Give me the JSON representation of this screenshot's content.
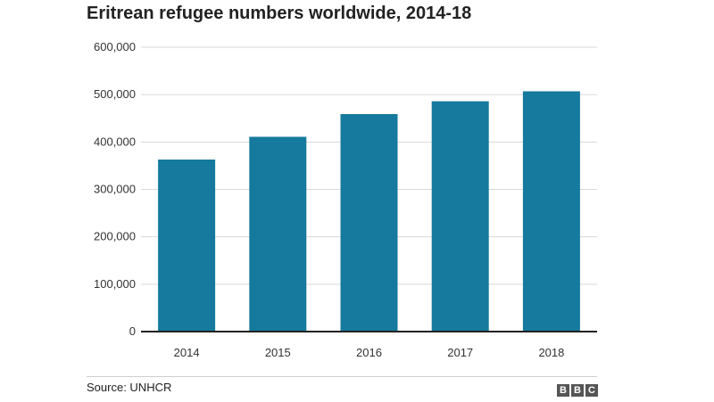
{
  "header": {
    "title": "Eritrean refugee numbers worldwide, 2014-18"
  },
  "footer": {
    "source": "Source: UNHCR",
    "logo": [
      "B",
      "B",
      "C"
    ]
  },
  "colors": {
    "bar": "#157a9d",
    "gridline": "#d9d9d9",
    "axis": "#222222"
  },
  "chart_data": {
    "type": "bar",
    "title": "Eritrean refugee numbers worldwide, 2014-18",
    "xlabel": "",
    "ylabel": "",
    "categories": [
      "2014",
      "2015",
      "2016",
      "2017",
      "2018"
    ],
    "values": [
      363000,
      411000,
      459000,
      486000,
      507000
    ],
    "ylim": [
      0,
      600000
    ],
    "yticks": [
      0,
      100000,
      200000,
      300000,
      400000,
      500000,
      600000
    ],
    "ytick_labels": [
      "0",
      "100,000",
      "200,000",
      "300,000",
      "400,000",
      "500,000",
      "600,000"
    ],
    "grid": true,
    "legend": "none"
  }
}
